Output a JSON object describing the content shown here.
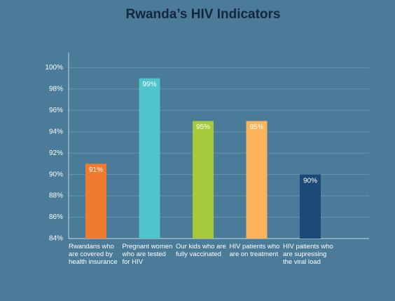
{
  "chart_data": {
    "type": "bar",
    "title": "Rwanda’s HIV Indicators",
    "categories": [
      "Rwandans who are covered by health insurance",
      "Pregnant women who are tested for HIV",
      "Our kids who are fully vaccinated",
      "HIV patients who are on treatment",
      "HIV patients who are supressing the viral load"
    ],
    "values": [
      91,
      99,
      95,
      95,
      90
    ],
    "value_labels": [
      "91%",
      "99%",
      "95%",
      "95%",
      "90%"
    ],
    "colors": [
      "#f07a2e",
      "#4fc4cb",
      "#a7c93c",
      "#fbb45c",
      "#1b4a78"
    ],
    "ylim": [
      84,
      101.4
    ],
    "yticks": [
      {
        "value": 84,
        "label": "84%"
      },
      {
        "value": 86,
        "label": "86%"
      },
      {
        "value": 88,
        "label": "88%"
      },
      {
        "value": 90,
        "label": "90%"
      },
      {
        "value": 92,
        "label": "92%"
      },
      {
        "value": 94,
        "label": "94%"
      },
      {
        "value": 96,
        "label": "96%"
      },
      {
        "value": 98,
        "label": "98%"
      },
      {
        "value": 100,
        "label": "100%"
      }
    ],
    "grid": true
  }
}
